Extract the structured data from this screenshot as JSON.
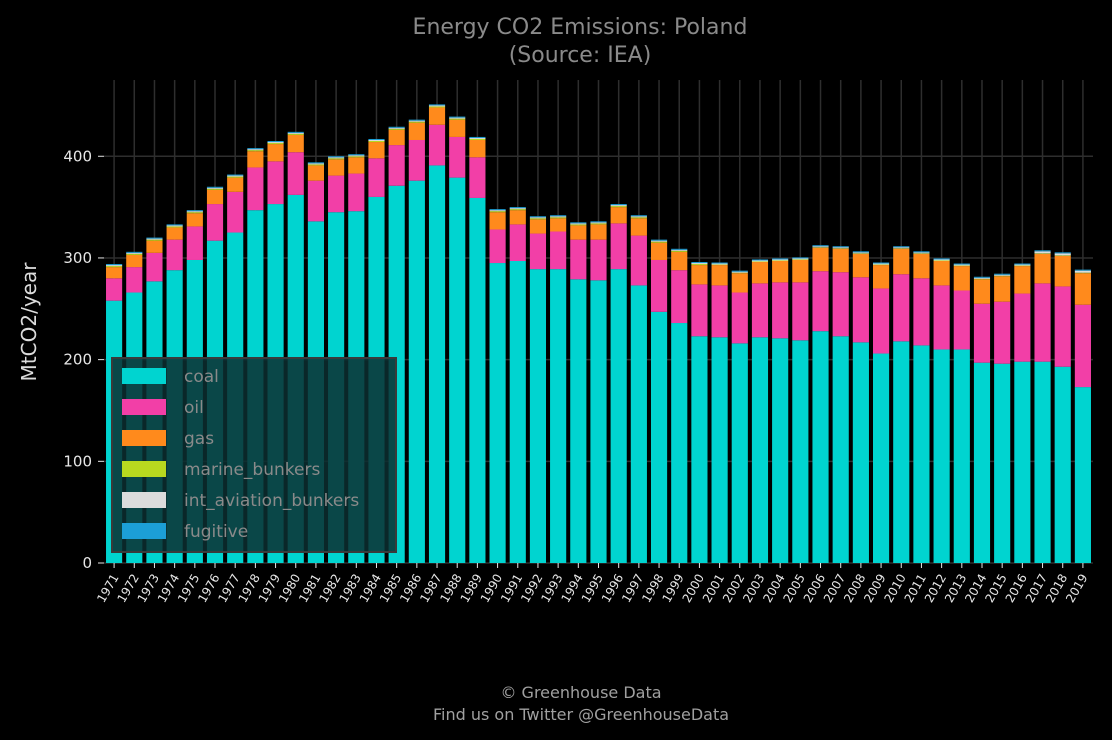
{
  "chart_data": {
    "type": "bar",
    "stacked": true,
    "title": "Energy CO2 Emissions: Poland",
    "subtitle": "(Source: IEA)",
    "xlabel": "",
    "ylabel": "MtCO2/year",
    "ylim": [
      0,
      475
    ],
    "yticks": [
      0,
      100,
      200,
      300,
      400
    ],
    "grid": true,
    "legend_position": "lower-left",
    "categories": [
      "1971",
      "1972",
      "1973",
      "1974",
      "1975",
      "1976",
      "1977",
      "1978",
      "1979",
      "1980",
      "1981",
      "1982",
      "1983",
      "1984",
      "1985",
      "1986",
      "1987",
      "1988",
      "1989",
      "1990",
      "1991",
      "1992",
      "1993",
      "1994",
      "1995",
      "1996",
      "1997",
      "1998",
      "1999",
      "2000",
      "2001",
      "2002",
      "2003",
      "2004",
      "2005",
      "2006",
      "2007",
      "2008",
      "2009",
      "2010",
      "2011",
      "2012",
      "2013",
      "2014",
      "2015",
      "2016",
      "2017",
      "2018",
      "2019"
    ],
    "series": [
      {
        "name": "coal",
        "color": "#00d4d0",
        "values": [
          258,
          266,
          277,
          288,
          298,
          317,
          325,
          347,
          353,
          362,
          336,
          345,
          346,
          360,
          371,
          376,
          391,
          379,
          359,
          295,
          297,
          289,
          289,
          279,
          278,
          289,
          273,
          247,
          236,
          223,
          222,
          216,
          222,
          221,
          219,
          228,
          223,
          217,
          206,
          218,
          214,
          210,
          210,
          197,
          196,
          198,
          198,
          193,
          173
        ]
      },
      {
        "name": "oil",
        "color": "#f23fa7",
        "values": [
          22,
          25,
          28,
          30,
          33,
          36,
          40,
          42,
          42,
          42,
          40,
          36,
          37,
          38,
          40,
          40,
          40,
          40,
          40,
          33,
          36,
          35,
          37,
          39,
          40,
          45,
          49,
          51,
          52,
          51,
          51,
          50,
          53,
          55,
          57,
          59,
          63,
          64,
          64,
          66,
          66,
          63,
          58,
          58,
          61,
          67,
          77,
          79,
          81
        ]
      },
      {
        "name": "gas",
        "color": "#ff8a1c",
        "values": [
          11,
          12,
          12,
          12,
          13,
          14,
          14,
          16,
          17,
          17,
          15,
          16,
          16,
          16,
          15,
          17,
          17,
          17,
          17,
          17,
          14,
          14,
          13,
          14,
          15,
          16,
          17,
          17,
          18,
          19,
          20,
          19,
          21,
          21,
          22,
          23,
          23,
          23,
          23,
          25,
          24,
          24,
          24,
          24,
          25,
          27,
          29,
          30,
          31
        ]
      },
      {
        "name": "marine_bunkers",
        "color": "#b8d91f",
        "values": [
          1,
          1,
          1,
          1,
          1,
          1,
          1,
          1,
          1,
          1,
          1,
          1,
          1,
          1,
          1,
          1,
          1,
          1,
          1,
          1,
          1,
          1,
          1,
          1,
          1,
          1,
          1,
          1,
          1,
          1,
          0.5,
          0.5,
          0.5,
          0.5,
          0.5,
          0.5,
          0.5,
          0.5,
          0.5,
          0.5,
          0.5,
          0.5,
          0.5,
          0.5,
          0.5,
          0.5,
          0.5,
          0.5,
          0.5
        ]
      },
      {
        "name": "int_aviation_bunkers",
        "color": "#dcdcdc",
        "values": [
          1,
          1,
          1,
          1,
          1,
          1,
          1,
          1,
          1,
          1,
          1,
          1,
          1,
          1,
          1,
          1,
          1,
          1,
          1,
          1,
          1,
          1,
          1,
          1,
          1,
          1,
          1,
          1,
          1,
          1,
          1,
          1,
          1,
          1,
          1,
          1,
          1,
          1,
          1,
          1,
          1,
          1,
          1,
          1,
          1,
          1,
          2,
          2,
          2
        ]
      },
      {
        "name": "fugitive",
        "color": "#1c9fd6",
        "values": [
          1,
          1,
          1,
          1,
          1,
          1,
          1,
          1,
          1,
          1,
          1,
          1,
          1,
          1,
          1,
          1,
          1,
          1,
          1,
          1,
          1,
          1,
          1,
          1,
          1,
          1,
          1,
          1,
          1,
          1,
          1,
          1,
          1,
          1,
          1,
          1,
          1,
          1,
          1,
          1,
          1,
          1,
          1,
          1,
          1,
          1,
          1,
          1,
          1
        ]
      }
    ]
  },
  "footer": {
    "line1": "© Greenhouse Data",
    "line2": "Find us on Twitter @GreenhouseData"
  }
}
